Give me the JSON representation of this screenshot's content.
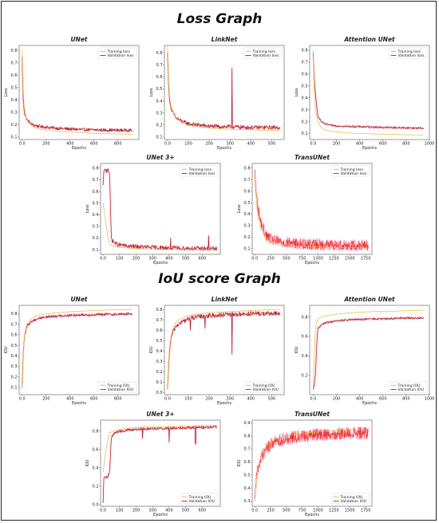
{
  "sections": {
    "loss_title": "Loss Graph",
    "iou_title": "IoU score Graph"
  },
  "colors": {
    "train": "#e8b830",
    "val": "#b0201e",
    "val_dense": "#e8180f",
    "glow": "#ff40c8"
  },
  "chart_data": [
    {
      "id": "loss-unet",
      "type": "line",
      "title": "UNet",
      "xlabel": "Epochs",
      "ylabel": "Loss",
      "xlim": [
        -25,
        975
      ],
      "ylim": [
        0.08,
        0.84
      ],
      "xticks": [
        0,
        200,
        400,
        600,
        800
      ],
      "yticks": [
        0.1,
        0.2,
        0.3,
        0.4,
        0.5,
        0.6,
        0.7,
        0.8
      ],
      "legend": "top-right",
      "series": [
        {
          "name": "Training loss",
          "role": "train",
          "x": [
            0,
            5,
            10,
            20,
            40,
            70,
            100,
            150,
            200,
            300,
            400,
            500,
            600,
            700,
            800,
            920
          ],
          "y": [
            0.8,
            0.55,
            0.42,
            0.31,
            0.24,
            0.2,
            0.18,
            0.165,
            0.155,
            0.145,
            0.14,
            0.135,
            0.13,
            0.128,
            0.125,
            0.122
          ]
        },
        {
          "name": "Validation loss",
          "role": "val",
          "x": [
            0,
            5,
            10,
            20,
            40,
            70,
            100,
            150,
            200,
            300,
            400,
            500,
            600,
            700,
            800,
            920
          ],
          "y": [
            0.75,
            0.5,
            0.38,
            0.29,
            0.24,
            0.21,
            0.195,
            0.185,
            0.18,
            0.17,
            0.165,
            0.16,
            0.158,
            0.156,
            0.155,
            0.155
          ],
          "noise": 0.012
        }
      ]
    },
    {
      "id": "loss-linknet",
      "type": "line",
      "title": "LinkNet",
      "xlabel": "Epochs",
      "ylabel": "Loss",
      "xlim": [
        -15,
        560
      ],
      "ylim": [
        0.08,
        0.86
      ],
      "xticks": [
        0,
        100,
        200,
        300,
        400,
        500
      ],
      "yticks": [
        0.1,
        0.2,
        0.3,
        0.4,
        0.5,
        0.6,
        0.7,
        0.8
      ],
      "legend": "top-right",
      "series": [
        {
          "name": "Training loss",
          "role": "train",
          "x": [
            0,
            5,
            10,
            20,
            40,
            70,
            100,
            150,
            200,
            300,
            400,
            540
          ],
          "y": [
            0.85,
            0.55,
            0.42,
            0.33,
            0.26,
            0.22,
            0.2,
            0.185,
            0.175,
            0.165,
            0.16,
            0.155
          ]
        },
        {
          "name": "Validation loss",
          "role": "val",
          "x": [
            0,
            5,
            10,
            20,
            40,
            70,
            100,
            150,
            200,
            300,
            400,
            540
          ],
          "y": [
            0.8,
            0.52,
            0.4,
            0.32,
            0.26,
            0.23,
            0.21,
            0.2,
            0.19,
            0.185,
            0.18,
            0.18
          ],
          "noise": 0.016,
          "spikes": [
            [
              310,
              0.67
            ]
          ]
        }
      ]
    },
    {
      "id": "loss-attention-unet",
      "type": "line",
      "title": "Attention UNet",
      "xlabel": "Epochs",
      "ylabel": "Loss",
      "xlim": [
        -30,
        1000
      ],
      "ylim": [
        0.05,
        0.84
      ],
      "xticks": [
        0,
        200,
        400,
        600,
        800,
        1000
      ],
      "yticks": [
        0.1,
        0.2,
        0.3,
        0.4,
        0.5,
        0.6,
        0.7,
        0.8
      ],
      "legend": "top-right",
      "series": [
        {
          "name": "Training loss",
          "role": "train",
          "x": [
            0,
            10,
            20,
            40,
            70,
            100,
            150,
            200,
            300,
            400,
            500,
            600,
            700,
            800,
            950
          ],
          "y": [
            0.8,
            0.45,
            0.3,
            0.2,
            0.15,
            0.13,
            0.12,
            0.115,
            0.105,
            0.1,
            0.098,
            0.095,
            0.093,
            0.09,
            0.088
          ]
        },
        {
          "name": "Validation loss",
          "role": "val",
          "x": [
            0,
            10,
            20,
            40,
            70,
            100,
            150,
            200,
            300,
            400,
            500,
            600,
            700,
            800,
            950
          ],
          "y": [
            0.78,
            0.55,
            0.42,
            0.25,
            0.2,
            0.18,
            0.17,
            0.165,
            0.16,
            0.158,
            0.155,
            0.152,
            0.15,
            0.148,
            0.145
          ],
          "noise": 0.008
        }
      ]
    },
    {
      "id": "loss-unet3plus",
      "type": "line",
      "title": "UNet 3+",
      "xlabel": "Epochs",
      "ylabel": "Loss",
      "xlim": [
        -15,
        710
      ],
      "ylim": [
        0.06,
        0.84
      ],
      "xticks": [
        0,
        100,
        200,
        300,
        400,
        500,
        600
      ],
      "yticks": [
        0.1,
        0.2,
        0.3,
        0.4,
        0.5,
        0.6,
        0.7,
        0.8
      ],
      "legend": "top-right",
      "series": [
        {
          "name": "Training loss",
          "role": "train",
          "x": [
            0,
            10,
            20,
            30,
            40,
            60,
            100,
            150,
            200,
            300,
            400,
            500,
            600,
            690
          ],
          "y": [
            0.5,
            0.4,
            0.3,
            0.2,
            0.15,
            0.13,
            0.12,
            0.115,
            0.11,
            0.105,
            0.1,
            0.1,
            0.098,
            0.095
          ]
        },
        {
          "name": "Validation loss",
          "role": "val",
          "x": [
            0,
            5,
            10,
            20,
            30,
            40,
            45,
            50,
            60,
            80,
            100,
            150,
            200,
            300,
            400,
            500,
            600,
            690
          ],
          "y": [
            0.65,
            0.78,
            0.79,
            0.77,
            0.8,
            0.75,
            0.45,
            0.2,
            0.17,
            0.15,
            0.14,
            0.13,
            0.125,
            0.12,
            0.115,
            0.112,
            0.11,
            0.108
          ],
          "noise": 0.018,
          "spikes": [
            [
              410,
              0.2
            ],
            [
              640,
              0.22
            ]
          ]
        }
      ]
    },
    {
      "id": "loss-transunet",
      "type": "line",
      "title": "TransUNet",
      "xlabel": "Epochs",
      "ylabel": "Loss",
      "xlim": [
        -40,
        1850
      ],
      "ylim": [
        0.05,
        0.84
      ],
      "xticks": [
        0,
        250,
        500,
        750,
        1000,
        1250,
        1500,
        1750
      ],
      "yticks": [
        0.1,
        0.2,
        0.3,
        0.4,
        0.5,
        0.6,
        0.7,
        0.8
      ],
      "legend": "top-right",
      "series": [
        {
          "name": "Training loss",
          "role": "train",
          "x": [
            0,
            20,
            50,
            100,
            150,
            200,
            300,
            500,
            750,
            1000,
            1250,
            1500,
            1790
          ],
          "y": [
            0.75,
            0.55,
            0.4,
            0.28,
            0.22,
            0.18,
            0.15,
            0.13,
            0.12,
            0.115,
            0.11,
            0.108,
            0.105
          ]
        },
        {
          "name": "Validation loss",
          "role": "val_dense",
          "x": [
            0,
            20,
            50,
            100,
            150,
            200,
            300,
            500,
            750,
            1000,
            1250,
            1500,
            1790
          ],
          "y": [
            0.78,
            0.6,
            0.45,
            0.32,
            0.25,
            0.2,
            0.17,
            0.15,
            0.14,
            0.135,
            0.13,
            0.128,
            0.125
          ],
          "noise": 0.045,
          "dense": true
        }
      ]
    },
    {
      "id": "iou-unet",
      "type": "line",
      "title": "UNet",
      "xlabel": "Epochs",
      "ylabel": "IOU",
      "xlim": [
        -25,
        975
      ],
      "ylim": [
        0.03,
        0.88
      ],
      "xticks": [
        0,
        200,
        400,
        600,
        800
      ],
      "yticks": [
        0.1,
        0.2,
        0.3,
        0.4,
        0.5,
        0.6,
        0.7,
        0.8
      ],
      "legend": "bottom-right",
      "series": [
        {
          "name": "Training IOU",
          "role": "train",
          "x": [
            0,
            5,
            10,
            20,
            40,
            70,
            100,
            150,
            200,
            300,
            400,
            500,
            600,
            700,
            800,
            920
          ],
          "y": [
            0.08,
            0.3,
            0.45,
            0.6,
            0.7,
            0.75,
            0.77,
            0.79,
            0.8,
            0.81,
            0.82,
            0.825,
            0.83,
            0.835,
            0.84,
            0.84
          ]
        },
        {
          "name": "Validation IOU",
          "role": "val",
          "x": [
            0,
            5,
            10,
            20,
            40,
            70,
            100,
            150,
            200,
            300,
            400,
            500,
            600,
            700,
            800,
            920
          ],
          "y": [
            0.1,
            0.3,
            0.45,
            0.58,
            0.68,
            0.72,
            0.74,
            0.76,
            0.77,
            0.78,
            0.785,
            0.79,
            0.79,
            0.795,
            0.795,
            0.8
          ],
          "noise": 0.012
        }
      ]
    },
    {
      "id": "iou-linknet",
      "type": "line",
      "title": "LinkNet",
      "xlabel": "Epochs",
      "ylabel": "IOU",
      "xlim": [
        -15,
        560
      ],
      "ylim": [
        -0.02,
        0.84
      ],
      "xticks": [
        0,
        100,
        200,
        300,
        400,
        500
      ],
      "yticks": [
        0.0,
        0.1,
        0.2,
        0.3,
        0.4,
        0.5,
        0.6,
        0.7,
        0.8
      ],
      "legend": "bottom-right",
      "series": [
        {
          "name": "Training IOU",
          "role": "train",
          "x": [
            0,
            5,
            10,
            20,
            40,
            70,
            100,
            150,
            200,
            300,
            400,
            540
          ],
          "y": [
            0.02,
            0.3,
            0.45,
            0.58,
            0.68,
            0.72,
            0.74,
            0.76,
            0.77,
            0.78,
            0.79,
            0.8
          ]
        },
        {
          "name": "Validation IOU",
          "role": "val",
          "x": [
            0,
            5,
            10,
            20,
            40,
            70,
            100,
            150,
            200,
            300,
            400,
            540
          ],
          "y": [
            0.03,
            0.25,
            0.42,
            0.55,
            0.64,
            0.68,
            0.71,
            0.73,
            0.74,
            0.75,
            0.76,
            0.76
          ],
          "noise": 0.022,
          "spikes": [
            [
              310,
              0.37
            ],
            [
              110,
              0.6
            ],
            [
              180,
              0.62
            ]
          ]
        }
      ]
    },
    {
      "id": "iou-attention-unet",
      "type": "line",
      "title": "Attention UNet",
      "xlabel": "Epochs",
      "ylabel": "IOU",
      "xlim": [
        -30,
        1000
      ],
      "ylim": [
        0.0,
        0.92
      ],
      "xticks": [
        0,
        200,
        400,
        600,
        800,
        1000
      ],
      "yticks": [
        0.2,
        0.4,
        0.6,
        0.8
      ],
      "legend": "bottom-right",
      "series": [
        {
          "name": "Training IOU",
          "role": "train",
          "x": [
            0,
            10,
            20,
            40,
            70,
            100,
            150,
            200,
            300,
            400,
            500,
            600,
            700,
            800,
            950
          ],
          "y": [
            0.05,
            0.45,
            0.7,
            0.78,
            0.8,
            0.81,
            0.82,
            0.83,
            0.84,
            0.85,
            0.855,
            0.86,
            0.86,
            0.865,
            0.87
          ]
        },
        {
          "name": "Validation IOU",
          "role": "val",
          "x": [
            0,
            10,
            20,
            30,
            40,
            70,
            100,
            150,
            200,
            300,
            400,
            500,
            600,
            700,
            800,
            950
          ],
          "y": [
            0.05,
            0.1,
            0.2,
            0.5,
            0.68,
            0.72,
            0.74,
            0.75,
            0.76,
            0.77,
            0.775,
            0.78,
            0.78,
            0.785,
            0.79,
            0.79
          ],
          "noise": 0.01
        }
      ]
    },
    {
      "id": "iou-unet3plus",
      "type": "line",
      "title": "UNet 3+",
      "xlabel": "Epochs",
      "ylabel": "IOU",
      "xlim": [
        -15,
        710
      ],
      "ylim": [
        -0.02,
        0.92
      ],
      "xticks": [
        0,
        100,
        200,
        300,
        400,
        500,
        600
      ],
      "yticks": [
        0.0,
        0.2,
        0.4,
        0.6,
        0.8
      ],
      "legend": "bottom-right",
      "series": [
        {
          "name": "Training IOU",
          "role": "train",
          "x": [
            0,
            10,
            20,
            30,
            40,
            60,
            100,
            150,
            200,
            300,
            400,
            500,
            600,
            690
          ],
          "y": [
            0.35,
            0.5,
            0.62,
            0.72,
            0.78,
            0.8,
            0.82,
            0.83,
            0.84,
            0.85,
            0.85,
            0.855,
            0.86,
            0.86
          ]
        },
        {
          "name": "Validation IOU",
          "role": "val",
          "x": [
            0,
            5,
            10,
            20,
            30,
            40,
            45,
            50,
            60,
            80,
            100,
            150,
            200,
            300,
            400,
            500,
            600,
            690
          ],
          "y": [
            0.02,
            0.3,
            0.3,
            0.3,
            0.31,
            0.35,
            0.55,
            0.72,
            0.76,
            0.79,
            0.8,
            0.81,
            0.82,
            0.83,
            0.83,
            0.84,
            0.84,
            0.85
          ],
          "noise": 0.015,
          "spikes": [
            [
              240,
              0.72
            ],
            [
              400,
              0.68
            ],
            [
              560,
              0.66
            ]
          ]
        }
      ]
    },
    {
      "id": "iou-transunet",
      "type": "line",
      "title": "TransUNet",
      "xlabel": "Epochs",
      "ylabel": "IOU",
      "xlim": [
        -40,
        1850
      ],
      "ylim": [
        0.26,
        0.92
      ],
      "xticks": [
        0,
        250,
        500,
        750,
        1000,
        1250,
        1500,
        1750
      ],
      "yticks": [
        0.3,
        0.4,
        0.5,
        0.6,
        0.7,
        0.8,
        0.9
      ],
      "legend": "bottom-right",
      "series": [
        {
          "name": "Training IOU",
          "role": "train",
          "x": [
            0,
            20,
            50,
            100,
            150,
            200,
            300,
            500,
            750,
            1000,
            1250,
            1500,
            1790
          ],
          "y": [
            0.3,
            0.45,
            0.55,
            0.65,
            0.7,
            0.73,
            0.77,
            0.8,
            0.82,
            0.83,
            0.84,
            0.845,
            0.85
          ]
        },
        {
          "name": "Validation IOU",
          "role": "val_dense",
          "x": [
            0,
            20,
            50,
            100,
            150,
            200,
            300,
            500,
            750,
            1000,
            1250,
            1500,
            1790
          ],
          "y": [
            0.32,
            0.45,
            0.55,
            0.63,
            0.68,
            0.71,
            0.75,
            0.78,
            0.8,
            0.81,
            0.815,
            0.82,
            0.82
          ],
          "noise": 0.045,
          "dense": true
        }
      ]
    }
  ]
}
